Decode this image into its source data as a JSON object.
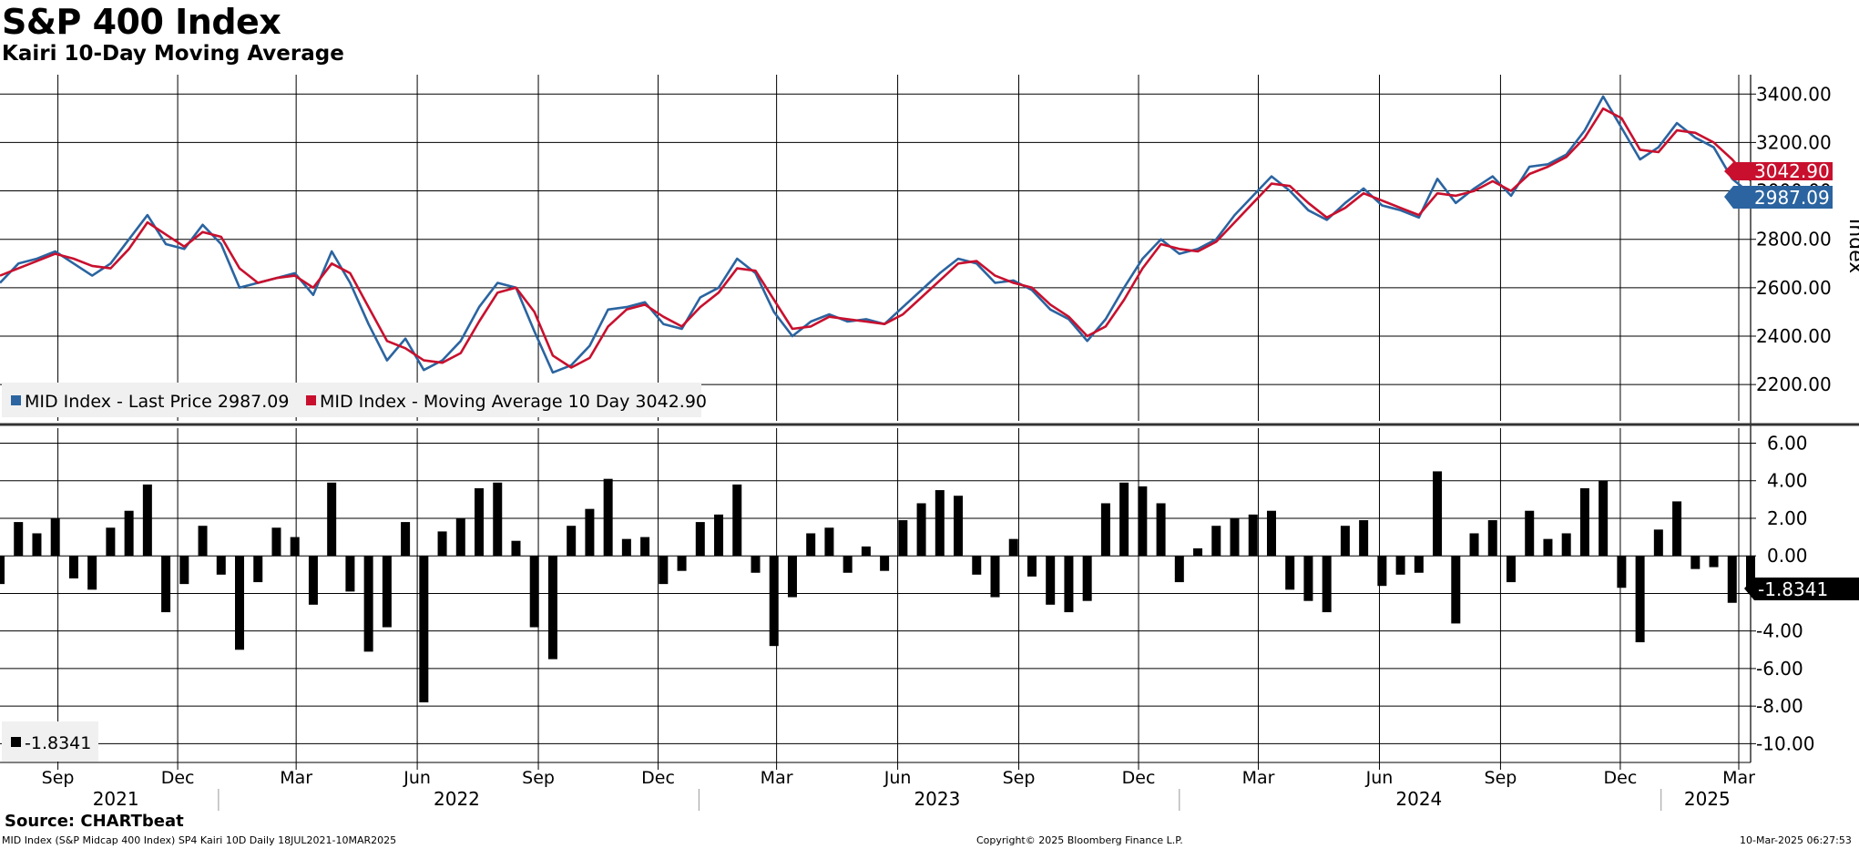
{
  "header": {
    "title": "S&P 400 Index",
    "subtitle": "Kairi 10-Day Moving Average"
  },
  "footer": {
    "source": "Source: CHARTbeat",
    "left": "MID Index (S&P Midcap 400 Index) SP4 Kairi 10D  Daily 18JUL2021-10MAR2025",
    "center": "Copyright© 2025 Bloomberg Finance L.P.",
    "right": "10-Mar-2025 06:27:53"
  },
  "colors": {
    "price": "#2b64a0",
    "moving_average": "#c8102e",
    "kairi": "#000000",
    "grid": "#000000",
    "legend_bg": "#f0f0f0"
  },
  "chart_data": [
    {
      "type": "line",
      "panel": "top",
      "ylabel": "Index",
      "ylim": [
        2050,
        3480
      ],
      "yticks": [
        "2200.00",
        "2400.00",
        "2600.00",
        "2800.00",
        "3000.00",
        "3200.00",
        "3400.00"
      ],
      "grid": true,
      "legend_position": "bottom-left",
      "x_start": "2021-07-19",
      "x_end": "2025-03-10",
      "series": [
        {
          "name": "MID Index - Last Price",
          "legend": "MID Index - Last Price 2987.09",
          "last_value": "2987.09",
          "x": [
            "2021-07-19",
            "2021-08-02",
            "2021-08-16",
            "2021-08-30",
            "2021-09-13",
            "2021-09-27",
            "2021-10-11",
            "2021-10-25",
            "2021-11-08",
            "2021-11-22",
            "2021-12-06",
            "2021-12-20",
            "2022-01-03",
            "2022-01-17",
            "2022-01-31",
            "2022-02-14",
            "2022-02-28",
            "2022-03-14",
            "2022-03-28",
            "2022-04-11",
            "2022-04-25",
            "2022-05-09",
            "2022-05-23",
            "2022-06-06",
            "2022-06-20",
            "2022-07-04",
            "2022-07-18",
            "2022-08-01",
            "2022-08-15",
            "2022-08-29",
            "2022-09-12",
            "2022-09-26",
            "2022-10-10",
            "2022-10-24",
            "2022-11-07",
            "2022-11-21",
            "2022-12-05",
            "2022-12-19",
            "2023-01-02",
            "2023-01-16",
            "2023-01-30",
            "2023-02-13",
            "2023-02-27",
            "2023-03-13",
            "2023-03-27",
            "2023-04-10",
            "2023-04-24",
            "2023-05-08",
            "2023-05-22",
            "2023-06-05",
            "2023-06-19",
            "2023-07-03",
            "2023-07-17",
            "2023-07-31",
            "2023-08-14",
            "2023-08-28",
            "2023-09-11",
            "2023-09-25",
            "2023-10-09",
            "2023-10-23",
            "2023-11-06",
            "2023-11-20",
            "2023-12-04",
            "2023-12-18",
            "2024-01-01",
            "2024-01-15",
            "2024-01-29",
            "2024-02-12",
            "2024-02-26",
            "2024-03-11",
            "2024-03-25",
            "2024-04-08",
            "2024-04-22",
            "2024-05-06",
            "2024-05-20",
            "2024-06-03",
            "2024-06-17",
            "2024-07-01",
            "2024-07-15",
            "2024-07-29",
            "2024-08-12",
            "2024-08-26",
            "2024-09-09",
            "2024-09-23",
            "2024-10-07",
            "2024-10-21",
            "2024-11-04",
            "2024-11-18",
            "2024-12-02",
            "2024-12-16",
            "2024-12-30",
            "2025-01-13",
            "2025-01-27",
            "2025-02-10",
            "2025-02-24",
            "2025-03-10"
          ],
          "values": [
            2620,
            2700,
            2720,
            2750,
            2700,
            2650,
            2700,
            2800,
            2900,
            2780,
            2760,
            2860,
            2780,
            2600,
            2620,
            2640,
            2660,
            2570,
            2750,
            2620,
            2450,
            2300,
            2390,
            2260,
            2300,
            2380,
            2520,
            2620,
            2600,
            2420,
            2250,
            2280,
            2360,
            2510,
            2520,
            2540,
            2450,
            2430,
            2560,
            2600,
            2720,
            2660,
            2500,
            2400,
            2460,
            2490,
            2460,
            2470,
            2450,
            2520,
            2590,
            2660,
            2720,
            2700,
            2620,
            2630,
            2590,
            2510,
            2470,
            2380,
            2470,
            2600,
            2720,
            2800,
            2740,
            2760,
            2800,
            2900,
            2980,
            3060,
            3000,
            2920,
            2880,
            2950,
            3010,
            2940,
            2920,
            2890,
            3050,
            2950,
            3010,
            3060,
            2980,
            3100,
            3110,
            3150,
            3250,
            3390,
            3260,
            3130,
            3180,
            3280,
            3220,
            3180,
            3050,
            2987.09
          ]
        },
        {
          "name": "MID Index - Moving Average 10 Day",
          "legend": "MID Index - Moving Average 10 Day 3042.90",
          "last_value": "3042.90",
          "x": [
            "2021-07-19",
            "2021-08-02",
            "2021-08-16",
            "2021-08-30",
            "2021-09-13",
            "2021-09-27",
            "2021-10-11",
            "2021-10-25",
            "2021-11-08",
            "2021-11-22",
            "2021-12-06",
            "2021-12-20",
            "2022-01-03",
            "2022-01-17",
            "2022-01-31",
            "2022-02-14",
            "2022-02-28",
            "2022-03-14",
            "2022-03-28",
            "2022-04-11",
            "2022-04-25",
            "2022-05-09",
            "2022-05-23",
            "2022-06-06",
            "2022-06-20",
            "2022-07-04",
            "2022-07-18",
            "2022-08-01",
            "2022-08-15",
            "2022-08-29",
            "2022-09-12",
            "2022-09-26",
            "2022-10-10",
            "2022-10-24",
            "2022-11-07",
            "2022-11-21",
            "2022-12-05",
            "2022-12-19",
            "2023-01-02",
            "2023-01-16",
            "2023-01-30",
            "2023-02-13",
            "2023-02-27",
            "2023-03-13",
            "2023-03-27",
            "2023-04-10",
            "2023-04-24",
            "2023-05-08",
            "2023-05-22",
            "2023-06-05",
            "2023-06-19",
            "2023-07-03",
            "2023-07-17",
            "2023-07-31",
            "2023-08-14",
            "2023-08-28",
            "2023-09-11",
            "2023-09-25",
            "2023-10-09",
            "2023-10-23",
            "2023-11-06",
            "2023-11-20",
            "2023-12-04",
            "2023-12-18",
            "2024-01-01",
            "2024-01-15",
            "2024-01-29",
            "2024-02-12",
            "2024-02-26",
            "2024-03-11",
            "2024-03-25",
            "2024-04-08",
            "2024-04-22",
            "2024-05-06",
            "2024-05-20",
            "2024-06-03",
            "2024-06-17",
            "2024-07-01",
            "2024-07-15",
            "2024-07-29",
            "2024-08-12",
            "2024-08-26",
            "2024-09-09",
            "2024-09-23",
            "2024-10-07",
            "2024-10-21",
            "2024-11-04",
            "2024-11-18",
            "2024-12-02",
            "2024-12-16",
            "2024-12-30",
            "2025-01-13",
            "2025-01-27",
            "2025-02-10",
            "2025-02-24",
            "2025-03-10"
          ],
          "values": [
            2650,
            2680,
            2710,
            2740,
            2720,
            2690,
            2680,
            2760,
            2870,
            2820,
            2770,
            2830,
            2810,
            2680,
            2620,
            2640,
            2650,
            2600,
            2700,
            2660,
            2520,
            2380,
            2350,
            2300,
            2290,
            2330,
            2460,
            2580,
            2600,
            2500,
            2320,
            2270,
            2310,
            2440,
            2510,
            2530,
            2480,
            2440,
            2520,
            2580,
            2680,
            2670,
            2550,
            2430,
            2440,
            2480,
            2470,
            2460,
            2450,
            2490,
            2560,
            2630,
            2700,
            2710,
            2650,
            2620,
            2600,
            2530,
            2480,
            2400,
            2440,
            2550,
            2680,
            2780,
            2760,
            2750,
            2790,
            2870,
            2950,
            3030,
            3020,
            2950,
            2890,
            2930,
            2990,
            2960,
            2930,
            2900,
            2990,
            2980,
            3000,
            3040,
            3000,
            3070,
            3100,
            3140,
            3220,
            3340,
            3300,
            3170,
            3160,
            3250,
            3240,
            3200,
            3130,
            3042.9
          ]
        }
      ]
    },
    {
      "type": "bar",
      "panel": "bottom",
      "ylim": [
        -11,
        6.8
      ],
      "yticks": [
        "-10.00",
        "-8.00",
        "-6.00",
        "-4.00",
        "-2.00",
        "0.00",
        "2.00",
        "4.00",
        "6.00"
      ],
      "grid": true,
      "legend_position": "bottom-left",
      "series": [
        {
          "name": "-1.8341",
          "last_value": "-1.8341",
          "x": [
            "2021-07-19",
            "2021-08-02",
            "2021-08-16",
            "2021-08-30",
            "2021-09-13",
            "2021-09-27",
            "2021-10-11",
            "2021-10-25",
            "2021-11-08",
            "2021-11-22",
            "2021-12-06",
            "2021-12-20",
            "2022-01-03",
            "2022-01-17",
            "2022-01-31",
            "2022-02-14",
            "2022-02-28",
            "2022-03-14",
            "2022-03-28",
            "2022-04-11",
            "2022-04-25",
            "2022-05-09",
            "2022-05-23",
            "2022-06-06",
            "2022-06-20",
            "2022-07-04",
            "2022-07-18",
            "2022-08-01",
            "2022-08-15",
            "2022-08-29",
            "2022-09-12",
            "2022-09-26",
            "2022-10-10",
            "2022-10-24",
            "2022-11-07",
            "2022-11-21",
            "2022-12-05",
            "2022-12-19",
            "2023-01-02",
            "2023-01-16",
            "2023-01-30",
            "2023-02-13",
            "2023-02-27",
            "2023-03-13",
            "2023-03-27",
            "2023-04-10",
            "2023-04-24",
            "2023-05-08",
            "2023-05-22",
            "2023-06-05",
            "2023-06-19",
            "2023-07-03",
            "2023-07-17",
            "2023-07-31",
            "2023-08-14",
            "2023-08-28",
            "2023-09-11",
            "2023-09-25",
            "2023-10-09",
            "2023-10-23",
            "2023-11-06",
            "2023-11-20",
            "2023-12-04",
            "2023-12-18",
            "2024-01-01",
            "2024-01-15",
            "2024-01-29",
            "2024-02-12",
            "2024-02-26",
            "2024-03-11",
            "2024-03-25",
            "2024-04-08",
            "2024-04-22",
            "2024-05-06",
            "2024-05-20",
            "2024-06-03",
            "2024-06-17",
            "2024-07-01",
            "2024-07-15",
            "2024-07-29",
            "2024-08-12",
            "2024-08-26",
            "2024-09-09",
            "2024-09-23",
            "2024-10-07",
            "2024-10-21",
            "2024-11-04",
            "2024-11-18",
            "2024-12-02",
            "2024-12-16",
            "2024-12-30",
            "2025-01-13",
            "2025-01-27",
            "2025-02-10",
            "2025-02-24",
            "2025-03-10"
          ],
          "values": [
            -1.5,
            1.8,
            1.2,
            2.0,
            -1.2,
            -1.8,
            1.5,
            2.4,
            3.8,
            -3.0,
            -1.5,
            1.6,
            -1.0,
            -5.0,
            -1.4,
            1.5,
            1.0,
            -2.6,
            3.9,
            -1.9,
            -5.1,
            -3.8,
            1.8,
            -7.8,
            1.3,
            2.0,
            3.6,
            3.9,
            0.8,
            -3.8,
            -5.5,
            1.6,
            2.5,
            4.1,
            0.9,
            1.0,
            -1.5,
            -0.8,
            1.8,
            2.2,
            3.8,
            -0.9,
            -4.8,
            -2.2,
            1.2,
            1.5,
            -0.9,
            0.5,
            -0.8,
            1.9,
            2.8,
            3.5,
            3.2,
            -1.0,
            -2.2,
            0.9,
            -1.1,
            -2.6,
            -3.0,
            -2.4,
            2.8,
            3.9,
            3.7,
            2.8,
            -1.4,
            0.4,
            1.6,
            2.0,
            2.2,
            2.4,
            -1.8,
            -2.4,
            -3.0,
            1.6,
            1.9,
            -1.6,
            -1.0,
            -0.9,
            4.5,
            -3.6,
            1.2,
            1.9,
            -1.4,
            2.4,
            0.9,
            1.2,
            3.6,
            4.0,
            -1.7,
            -4.6,
            1.4,
            2.9,
            -0.7,
            -0.6,
            -2.5,
            -1.8341
          ]
        }
      ]
    }
  ],
  "axis": {
    "months": [
      "Sep",
      "Dec",
      "Mar",
      "Jun",
      "Sep",
      "Dec",
      "Mar",
      "Jun",
      "Sep",
      "Dec",
      "Mar",
      "Jun",
      "Sep",
      "Dec",
      "Mar"
    ],
    "years": [
      "2021",
      "2022",
      "2023",
      "2024",
      "2025"
    ]
  }
}
